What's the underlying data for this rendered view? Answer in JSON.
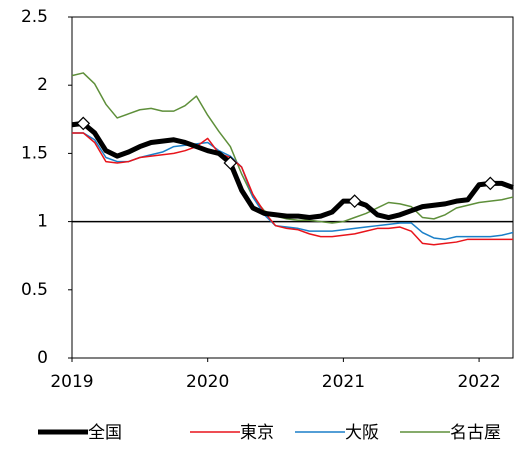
{
  "chart_data": {
    "type": "line",
    "x": [
      2019,
      2019.083,
      2019.167,
      2019.25,
      2019.333,
      2019.417,
      2019.5,
      2019.583,
      2019.667,
      2019.75,
      2019.833,
      2019.917,
      2020,
      2020.083,
      2020.167,
      2020.25,
      2020.333,
      2020.417,
      2020.5,
      2020.583,
      2020.667,
      2020.75,
      2020.833,
      2020.917,
      2021,
      2021.083,
      2021.167,
      2021.25,
      2021.333,
      2021.417,
      2021.5,
      2021.583,
      2021.667,
      2021.75,
      2021.833,
      2021.917,
      2022,
      2022.083,
      2022.167,
      2022.25
    ],
    "xlim": [
      2019,
      2022.25
    ],
    "xticks": [
      2019,
      2020,
      2021,
      2022
    ],
    "ylim": [
      0,
      2.5
    ],
    "yticks": [
      0,
      0.5,
      1,
      1.5,
      2,
      2.5
    ],
    "reference_line": 1,
    "series": [
      {
        "name": "全国",
        "color": "#000000",
        "width": 5,
        "markers": [
          1,
          14,
          25,
          37
        ],
        "values": [
          1.71,
          1.72,
          1.65,
          1.52,
          1.48,
          1.51,
          1.55,
          1.58,
          1.59,
          1.6,
          1.58,
          1.55,
          1.52,
          1.5,
          1.43,
          1.23,
          1.1,
          1.06,
          1.05,
          1.04,
          1.04,
          1.03,
          1.04,
          1.07,
          1.15,
          1.15,
          1.12,
          1.05,
          1.03,
          1.05,
          1.08,
          1.11,
          1.12,
          1.13,
          1.15,
          1.16,
          1.27,
          1.28,
          1.28,
          1.25
        ]
      },
      {
        "name": "東京",
        "color": "#e8141b",
        "width": 1.5,
        "values": [
          1.65,
          1.65,
          1.58,
          1.44,
          1.43,
          1.44,
          1.47,
          1.48,
          1.49,
          1.5,
          1.52,
          1.55,
          1.61,
          1.5,
          1.47,
          1.4,
          1.2,
          1.07,
          0.97,
          0.95,
          0.94,
          0.91,
          0.89,
          0.89,
          0.9,
          0.91,
          0.93,
          0.95,
          0.95,
          0.96,
          0.93,
          0.84,
          0.83,
          0.84,
          0.85,
          0.87,
          0.87,
          0.87,
          0.87,
          0.87
        ]
      },
      {
        "name": "大阪",
        "color": "#1a7fc8",
        "width": 1.5,
        "values": [
          1.65,
          1.65,
          1.6,
          1.47,
          1.44,
          1.44,
          1.47,
          1.49,
          1.51,
          1.55,
          1.56,
          1.57,
          1.58,
          1.52,
          1.48,
          1.4,
          1.18,
          1.05,
          0.97,
          0.96,
          0.95,
          0.93,
          0.93,
          0.93,
          0.94,
          0.95,
          0.96,
          0.97,
          0.98,
          0.99,
          0.99,
          0.92,
          0.88,
          0.87,
          0.89,
          0.89,
          0.89,
          0.89,
          0.9,
          0.92
        ]
      },
      {
        "name": "名古屋",
        "color": "#5e8f3a",
        "width": 1.5,
        "values": [
          2.07,
          2.09,
          2.01,
          1.86,
          1.76,
          1.79,
          1.82,
          1.83,
          1.81,
          1.81,
          1.85,
          1.92,
          1.78,
          1.66,
          1.55,
          1.35,
          1.18,
          1.08,
          1.04,
          1.02,
          1.01,
          1.01,
          1.0,
          0.99,
          1.0,
          1.03,
          1.06,
          1.1,
          1.14,
          1.13,
          1.11,
          1.03,
          1.02,
          1.05,
          1.1,
          1.12,
          1.14,
          1.15,
          1.16,
          1.18
        ]
      }
    ]
  }
}
